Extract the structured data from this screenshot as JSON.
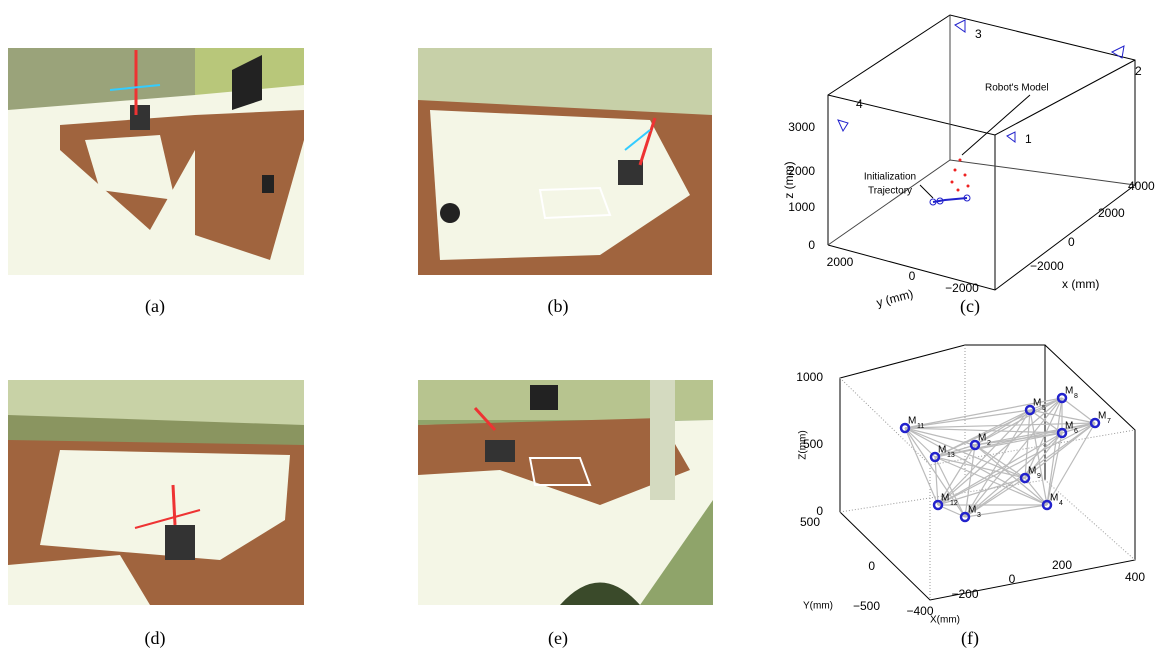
{
  "panels": {
    "a": {
      "caption": "(a)"
    },
    "b": {
      "caption": "(b)"
    },
    "c": {
      "caption": "(c)",
      "z_ticks": [
        "0",
        "1000",
        "2000",
        "3000"
      ],
      "y_ticks": [
        "2000",
        "0",
        "−2000"
      ],
      "x_ticks": [
        "−2000",
        "0",
        "2000",
        "4000"
      ],
      "x_label": "x (mm)",
      "y_label": "y (mm)",
      "z_label": "z (mm)",
      "cameras": [
        "1",
        "2",
        "3",
        "4"
      ],
      "robot_label": "Robot's Model",
      "init_label": [
        "Initialization",
        "Trajectory"
      ]
    },
    "d": {
      "caption": "(d)"
    },
    "e": {
      "caption": "(e)"
    },
    "f": {
      "caption": "(f)",
      "z_ticks": [
        "0",
        "500",
        "1000"
      ],
      "y_ticks": [
        "500",
        "0",
        "−500"
      ],
      "x_ticks": [
        "−400",
        "−200",
        "0",
        "200",
        "400"
      ],
      "x_label": "X(mm)",
      "y_label": "Y(mm)",
      "z_label": "Z(mm)",
      "markers": [
        {
          "main": "M",
          "sub": "11"
        },
        {
          "main": "M",
          "sub": "13"
        },
        {
          "main": "M",
          "sub": "12"
        },
        {
          "main": "M",
          "sub": "3"
        },
        {
          "main": "M",
          "sub": "2"
        },
        {
          "main": "M",
          "sub": "5"
        },
        {
          "main": "M",
          "sub": "8"
        },
        {
          "main": "M",
          "sub": "7"
        },
        {
          "main": "M",
          "sub": "6"
        },
        {
          "main": "M",
          "sub": "9"
        },
        {
          "main": "M",
          "sub": "4"
        }
      ]
    }
  }
}
